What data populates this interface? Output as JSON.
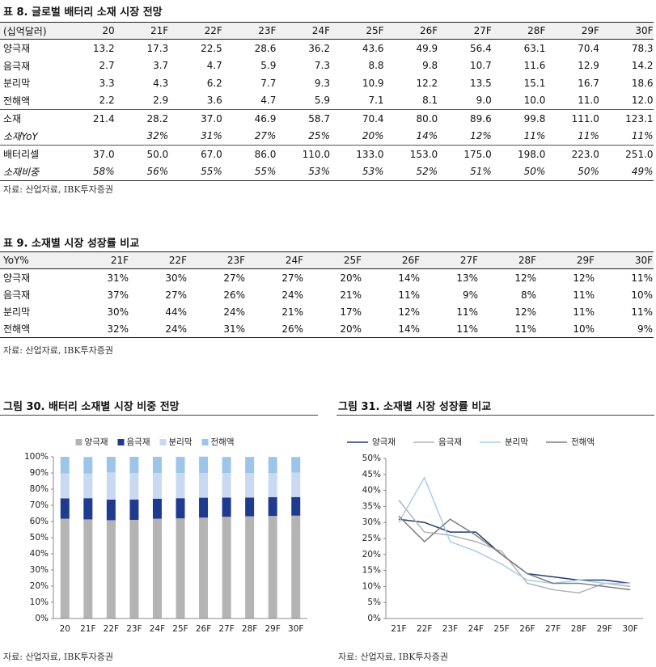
{
  "table8": {
    "title": "표 8. 글로벌 배터리 소재 시장 전망",
    "header": [
      "(십억달러)",
      "20",
      "21F",
      "22F",
      "23F",
      "24F",
      "25F",
      "26F",
      "27F",
      "28F",
      "29F",
      "30F"
    ],
    "rows": [
      {
        "label": "양극재",
        "cells": [
          "13.2",
          "17.3",
          "22.5",
          "28.6",
          "36.2",
          "43.6",
          "49.9",
          "56.4",
          "63.1",
          "70.4",
          "78.3"
        ]
      },
      {
        "label": "음극재",
        "cells": [
          "2.7",
          "3.7",
          "4.7",
          "5.9",
          "7.3",
          "8.8",
          "9.8",
          "10.7",
          "11.6",
          "12.9",
          "14.2"
        ]
      },
      {
        "label": "분리막",
        "cells": [
          "3.3",
          "4.3",
          "6.2",
          "7.7",
          "9.3",
          "10.9",
          "12.2",
          "13.5",
          "15.1",
          "16.7",
          "18.6"
        ]
      },
      {
        "label": "전해액",
        "cells": [
          "2.2",
          "2.9",
          "3.6",
          "4.7",
          "5.9",
          "7.1",
          "8.1",
          "9.0",
          "10.0",
          "11.0",
          "12.0"
        ]
      },
      {
        "label": "소재",
        "cells": [
          "21.4",
          "28.2",
          "37.0",
          "46.9",
          "58.7",
          "70.4",
          "80.0",
          "89.6",
          "99.8",
          "111.0",
          "123.1"
        ]
      },
      {
        "label": "소재YoY",
        "cells": [
          null,
          "32%",
          "31%",
          "27%",
          "25%",
          "20%",
          "14%",
          "12%",
          "11%",
          "11%",
          "11%"
        ]
      },
      {
        "label": "배터리셀",
        "cells": [
          "37.0",
          "50.0",
          "67.0",
          "86.0",
          "110.0",
          "133.0",
          "153.0",
          "175.0",
          "198.0",
          "223.0",
          "251.0"
        ]
      },
      {
        "label": "소재비중",
        "cells": [
          "58%",
          "56%",
          "55%",
          "55%",
          "53%",
          "53%",
          "52%",
          "51%",
          "50%",
          "50%",
          "49%"
        ]
      }
    ],
    "source": "자료: 산업자료, IBK투자증권"
  },
  "table9": {
    "title": "표 9. 소재별 시장 성장률 비교",
    "header": [
      "YoY%",
      "21F",
      "22F",
      "23F",
      "24F",
      "25F",
      "26F",
      "27F",
      "28F",
      "29F",
      "30F"
    ],
    "rows": [
      {
        "label": "양극재",
        "cells": [
          "31%",
          "30%",
          "27%",
          "27%",
          "20%",
          "14%",
          "13%",
          "12%",
          "12%",
          "11%"
        ]
      },
      {
        "label": "음극재",
        "cells": [
          "37%",
          "27%",
          "26%",
          "24%",
          "21%",
          "11%",
          "9%",
          "8%",
          "11%",
          "10%"
        ]
      },
      {
        "label": "분리막",
        "cells": [
          "30%",
          "44%",
          "24%",
          "21%",
          "17%",
          "12%",
          "11%",
          "12%",
          "11%",
          "11%"
        ]
      },
      {
        "label": "전해액",
        "cells": [
          "32%",
          "24%",
          "31%",
          "26%",
          "20%",
          "14%",
          "11%",
          "11%",
          "10%",
          "9%"
        ]
      }
    ],
    "source": "자료: 산업자료, IBK투자증권"
  },
  "chart_data": [
    {
      "type": "bar",
      "stacked": true,
      "title": "그림 30. 배터리 소재별 시장 비중 전망",
      "categories": [
        "20",
        "21F",
        "22F",
        "23F",
        "24F",
        "25F",
        "26F",
        "27F",
        "28F",
        "29F",
        "30F"
      ],
      "series": [
        {
          "name": "양극재",
          "color": "#b4b4b4",
          "values": [
            61.7,
            61.3,
            60.8,
            61.0,
            61.7,
            61.9,
            62.4,
            62.9,
            63.2,
            63.4,
            63.6
          ]
        },
        {
          "name": "음극재",
          "color": "#1f3b8f",
          "values": [
            12.6,
            13.1,
            12.7,
            12.6,
            12.4,
            12.5,
            12.3,
            11.9,
            11.6,
            11.6,
            11.5
          ]
        },
        {
          "name": "분리막",
          "color": "#c9d9f1",
          "values": [
            15.4,
            15.2,
            16.8,
            16.4,
            15.8,
            15.5,
            15.3,
            15.1,
            15.1,
            15.0,
            15.1
          ]
        },
        {
          "name": "전해액",
          "color": "#9dc5ea",
          "values": [
            10.3,
            10.3,
            9.7,
            10.0,
            10.1,
            10.1,
            10.1,
            10.0,
            10.0,
            9.9,
            9.7
          ]
        }
      ],
      "ylim": [
        0,
        100
      ],
      "yticks": [
        {
          "value": 0,
          "label": "0%"
        },
        {
          "value": 10,
          "label": "10%"
        },
        {
          "value": 20,
          "label": "20%"
        },
        {
          "value": 30,
          "label": "30%"
        },
        {
          "value": 40,
          "label": "40%"
        },
        {
          "value": 50,
          "label": "50%"
        },
        {
          "value": 60,
          "label": "60%"
        },
        {
          "value": 70,
          "label": "70%"
        },
        {
          "value": 80,
          "label": "80%"
        },
        {
          "value": 90,
          "label": "90%"
        },
        {
          "value": 100,
          "label": "100%"
        }
      ],
      "legend": "top",
      "source": "자료: 산업자료, IBK투자증권"
    },
    {
      "type": "line",
      "title": "그림 31. 소재별 시장 성장률 비교",
      "categories": [
        "21F",
        "22F",
        "23F",
        "24F",
        "25F",
        "26F",
        "27F",
        "28F",
        "29F",
        "30F"
      ],
      "series": [
        {
          "name": "양극재",
          "color": "#1f3a6e",
          "values": [
            31,
            30,
            27,
            27,
            20,
            14,
            13,
            12,
            12,
            11
          ]
        },
        {
          "name": "음극재",
          "color": "#b4b4b4",
          "values": [
            37,
            27,
            26,
            24,
            21,
            11,
            9,
            8,
            11,
            10
          ]
        },
        {
          "name": "분리막",
          "color": "#a9cdea",
          "values": [
            30,
            44,
            24,
            21,
            17,
            12,
            11,
            12,
            11,
            11
          ]
        },
        {
          "name": "전해액",
          "color": "#7f7f7f",
          "values": [
            32,
            24,
            31,
            26,
            20,
            14,
            11,
            11,
            10,
            9
          ]
        }
      ],
      "ylim": [
        0,
        50
      ],
      "yticks": [
        {
          "value": 0,
          "label": "0%"
        },
        {
          "value": 5,
          "label": "5%"
        },
        {
          "value": 10,
          "label": "10%"
        },
        {
          "value": 15,
          "label": "15%"
        },
        {
          "value": 20,
          "label": "20%"
        },
        {
          "value": 25,
          "label": "25%"
        },
        {
          "value": 30,
          "label": "30%"
        },
        {
          "value": 35,
          "label": "35%"
        },
        {
          "value": 40,
          "label": "40%"
        },
        {
          "value": 45,
          "label": "45%"
        },
        {
          "value": 50,
          "label": "50%"
        }
      ],
      "legend": "top",
      "source": "자료: 산업자료, IBK투자증권"
    }
  ]
}
